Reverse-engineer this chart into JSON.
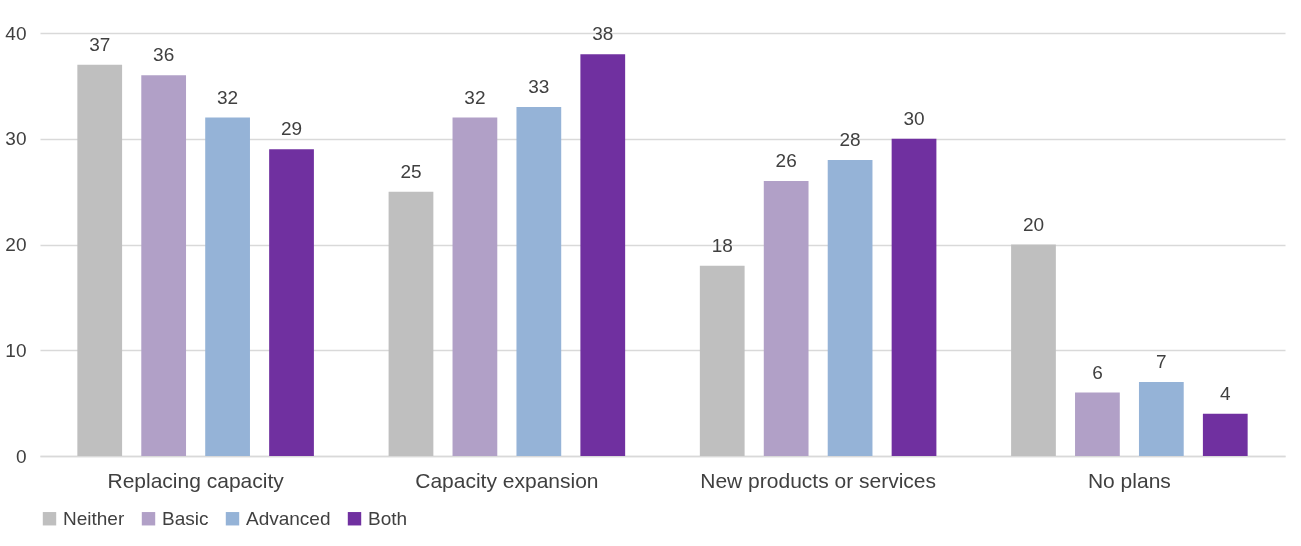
{
  "chart_data": {
    "type": "bar",
    "categories": [
      "Replacing capacity",
      "Capacity expansion",
      "New products or services",
      "No plans"
    ],
    "series": [
      {
        "name": "Neither",
        "color": "#bfbfbf",
        "values": [
          37,
          25,
          18,
          20
        ]
      },
      {
        "name": "Basic",
        "color": "#b1a0c7",
        "values": [
          36,
          32,
          26,
          6
        ]
      },
      {
        "name": "Advanced",
        "color": "#95b3d7",
        "values": [
          32,
          33,
          28,
          7
        ]
      },
      {
        "name": "Both",
        "color": "#7030a0",
        "values": [
          29,
          38,
          30,
          4
        ]
      }
    ],
    "ylim": [
      0,
      40
    ],
    "yticks": [
      0,
      10,
      20,
      30,
      40
    ],
    "grid": "y",
    "legend": "bottom",
    "data_labels": true
  }
}
